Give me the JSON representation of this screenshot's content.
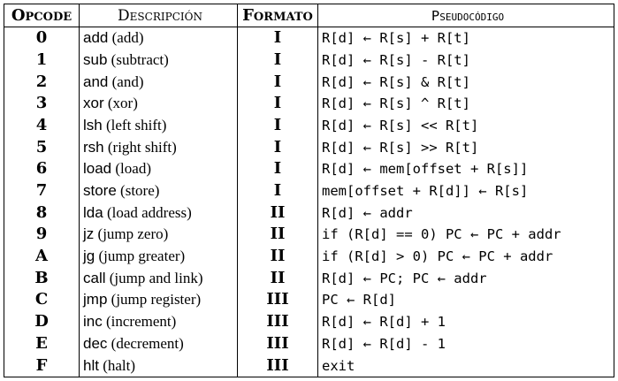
{
  "headers": {
    "opcode": "Opcode",
    "description": "Descripción",
    "format": "Formato",
    "pseudocode": "Pseudocódigo"
  },
  "rows": [
    {
      "opcode": "0",
      "mnemonic": "add",
      "name": "(add)",
      "format": "I",
      "pseudo": "R[d] ← R[s] + R[t]"
    },
    {
      "opcode": "1",
      "mnemonic": "sub",
      "name": "(subtract)",
      "format": "I",
      "pseudo": "R[d] ← R[s] - R[t]"
    },
    {
      "opcode": "2",
      "mnemonic": "and",
      "name": "(and)",
      "format": "I",
      "pseudo": "R[d] ← R[s] & R[t]"
    },
    {
      "opcode": "3",
      "mnemonic": "xor",
      "name": "(xor)",
      "format": "I",
      "pseudo": "R[d] ← R[s] ^ R[t]"
    },
    {
      "opcode": "4",
      "mnemonic": "lsh",
      "name": "(left shift)",
      "format": "I",
      "pseudo": "R[d] ← R[s] << R[t]"
    },
    {
      "opcode": "5",
      "mnemonic": "rsh",
      "name": "(right shift)",
      "format": "I",
      "pseudo": "R[d] ← R[s] >> R[t]"
    },
    {
      "opcode": "6",
      "mnemonic": "load",
      "name": "(load)",
      "format": "I",
      "pseudo": "R[d] ← mem[offset + R[s]]"
    },
    {
      "opcode": "7",
      "mnemonic": "store",
      "name": "(store)",
      "format": "I",
      "pseudo": "mem[offset + R[d]] ← R[s]"
    },
    {
      "opcode": "8",
      "mnemonic": "lda",
      "name": "(load address)",
      "format": "II",
      "pseudo": "R[d] ← addr"
    },
    {
      "opcode": "9",
      "mnemonic": "jz",
      "name": "(jump zero)",
      "format": "II",
      "pseudo": "if (R[d] == 0) PC ← PC + addr"
    },
    {
      "opcode": "A",
      "mnemonic": "jg",
      "name": "(jump greater)",
      "format": "II",
      "pseudo": "if (R[d] > 0) PC ← PC + addr"
    },
    {
      "opcode": "B",
      "mnemonic": "call",
      "name": "(jump and link)",
      "format": "II",
      "pseudo": "R[d] ← PC; PC ← addr"
    },
    {
      "opcode": "C",
      "mnemonic": "jmp",
      "name": "(jump register)",
      "format": "III",
      "pseudo": "PC ← R[d]"
    },
    {
      "opcode": "D",
      "mnemonic": "inc",
      "name": "(increment)",
      "format": "III",
      "pseudo": "R[d] ← R[d] + 1"
    },
    {
      "opcode": "E",
      "mnemonic": "dec",
      "name": "(decrement)",
      "format": "III",
      "pseudo": "R[d] ← R[d] - 1"
    },
    {
      "opcode": "F",
      "mnemonic": "hlt",
      "name": "(halt)",
      "format": "III",
      "pseudo": "exit"
    }
  ]
}
